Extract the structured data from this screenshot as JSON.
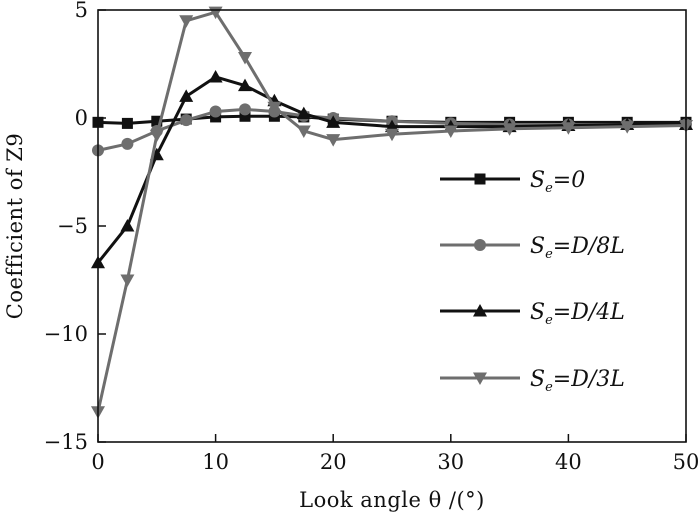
{
  "chart_data": {
    "type": "line",
    "title": "",
    "xlabel": "Look angle  θ /(°)",
    "ylabel": "Coefficient of Z9",
    "xlim": [
      0,
      50
    ],
    "ylim": [
      -15,
      5
    ],
    "xticks": [
      0,
      10,
      20,
      30,
      40,
      50
    ],
    "yticks": [
      5,
      0,
      -5,
      -10,
      -15
    ],
    "xtick_labels": [
      "0",
      "10",
      "20",
      "30",
      "40",
      "50"
    ],
    "ytick_labels": [
      "5",
      "0",
      "−5",
      "−10",
      "−15"
    ],
    "grid": false,
    "legend_position": "right",
    "series": [
      {
        "name": "Se=0",
        "label_main": "S",
        "label_sub": "e",
        "label_rest": "=0",
        "marker": "square",
        "color": "#111111",
        "x": [
          0,
          2.5,
          5,
          7.5,
          10,
          12.5,
          15,
          17.5,
          20,
          25,
          30,
          35,
          40,
          45,
          50
        ],
        "y": [
          -0.2,
          -0.25,
          -0.15,
          -0.05,
          0.05,
          0.08,
          0.08,
          0.05,
          -0.05,
          -0.15,
          -0.2,
          -0.2,
          -0.2,
          -0.2,
          -0.2
        ]
      },
      {
        "name": "Se=D/8L",
        "label_main": "S",
        "label_sub": "e",
        "label_rest": "=D/8L",
        "marker": "circle",
        "color": "#6e6e6e",
        "x": [
          0,
          2.5,
          5,
          7.5,
          10,
          12.5,
          15,
          17.5,
          20,
          25,
          30,
          35,
          40,
          45,
          50
        ],
        "y": [
          -1.5,
          -1.2,
          -0.6,
          -0.1,
          0.3,
          0.4,
          0.3,
          0.1,
          0.0,
          -0.15,
          -0.25,
          -0.3,
          -0.3,
          -0.3,
          -0.3
        ]
      },
      {
        "name": "Se=D/4L",
        "label_main": "S",
        "label_sub": "e",
        "label_rest": "=D/4L",
        "marker": "triangle-up",
        "color": "#111111",
        "x": [
          0,
          2.5,
          5,
          7.5,
          10,
          12.5,
          15,
          17.5,
          20,
          25,
          30,
          35,
          40,
          45,
          50
        ],
        "y": [
          -6.7,
          -5.0,
          -1.7,
          1.0,
          1.9,
          1.5,
          0.8,
          0.2,
          -0.2,
          -0.4,
          -0.4,
          -0.4,
          -0.35,
          -0.3,
          -0.3
        ]
      },
      {
        "name": "Se=D/3L",
        "label_main": "S",
        "label_sub": "e",
        "label_rest": "=D/3L",
        "marker": "triangle-down",
        "color": "#6e6e6e",
        "x": [
          0,
          2.5,
          5,
          7.5,
          10,
          12.5,
          15,
          17.5,
          20,
          25,
          30,
          35,
          40,
          45,
          50
        ],
        "y": [
          -13.6,
          -7.5,
          -0.8,
          4.5,
          4.9,
          2.8,
          0.5,
          -0.6,
          -1.0,
          -0.75,
          -0.6,
          -0.5,
          -0.45,
          -0.4,
          -0.35
        ]
      }
    ]
  }
}
